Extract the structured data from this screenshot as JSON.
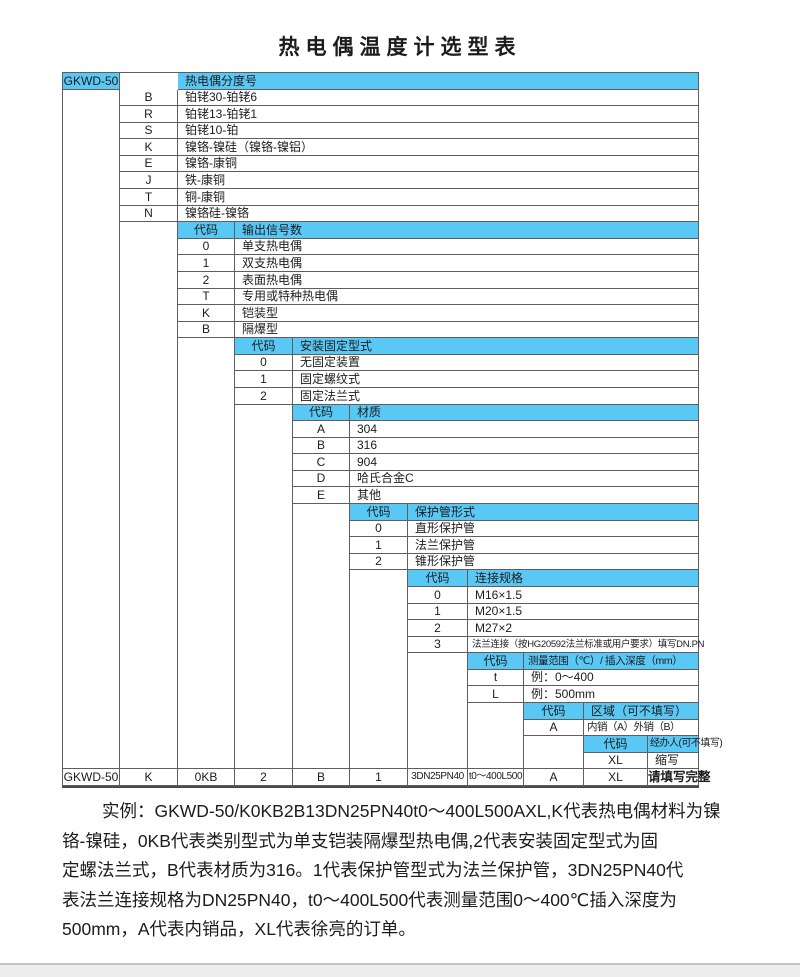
{
  "page": {
    "title": "热电偶温度计选型表"
  },
  "colors": {
    "header_blue": "#5ac8f5",
    "border": "#5e5e5e",
    "text": "#1c1c1c"
  },
  "table": {
    "sections": [
      {
        "code_header": "GKWD-50",
        "label_header": "热电偶分度号",
        "rows": [
          {
            "code": "B",
            "label": "铂铑30-铂铑6"
          },
          {
            "code": "R",
            "label": "铂铑13-铂铑1"
          },
          {
            "code": "S",
            "label": "铂铑10-铂"
          },
          {
            "code": "K",
            "label": "镍铬-镍硅（镍铬-镍铝）"
          },
          {
            "code": "E",
            "label": "镍铬-康铜"
          },
          {
            "code": "J",
            "label": "铁-康铜"
          },
          {
            "code": "T",
            "label": "铜-康铜"
          },
          {
            "code": "N",
            "label": "镍铬硅-镍铬"
          }
        ]
      },
      {
        "code_header": "代码",
        "label_header": "输出信号数",
        "rows": [
          {
            "code": "0",
            "label": "单支热电偶"
          },
          {
            "code": "1",
            "label": "双支热电偶"
          },
          {
            "code": "2",
            "label": "表面热电偶"
          },
          {
            "code": "T",
            "label": "专用或特种热电偶"
          },
          {
            "code": "K",
            "label": "铠装型"
          },
          {
            "code": "B",
            "label": "隔爆型"
          }
        ]
      },
      {
        "code_header": "代码",
        "label_header": "安装固定型式",
        "rows": [
          {
            "code": "0",
            "label": "无固定装置"
          },
          {
            "code": "1",
            "label": "固定螺纹式"
          },
          {
            "code": "2",
            "label": "固定法兰式"
          }
        ]
      },
      {
        "code_header": "代码",
        "label_header": "材质",
        "rows": [
          {
            "code": "A",
            "label": "304"
          },
          {
            "code": "B",
            "label": "316"
          },
          {
            "code": "C",
            "label": "904"
          },
          {
            "code": "D",
            "label": "哈氏合金C"
          },
          {
            "code": "E",
            "label": "其他"
          }
        ]
      },
      {
        "code_header": "代码",
        "label_header": "保护管形式",
        "rows": [
          {
            "code": "0",
            "label": "直形保护管"
          },
          {
            "code": "1",
            "label": "法兰保护管"
          },
          {
            "code": "2",
            "label": "锥形保护管"
          }
        ]
      },
      {
        "code_header": "代码",
        "label_header": "连接规格",
        "rows": [
          {
            "code": "0",
            "label": "M16×1.5"
          },
          {
            "code": "1",
            "label": "M20×1.5"
          },
          {
            "code": "2",
            "label": "M27×2"
          },
          {
            "code": "3",
            "label": "法兰连接（按HG20592法兰标准或用户要求）填写DN.PN"
          }
        ]
      },
      {
        "code_header": "代码",
        "label_header": "测量范围（℃）/ 插入深度（mm）",
        "rows": [
          {
            "code": "t",
            "label": "例：0～400"
          },
          {
            "code": "L",
            "label": "例：500mm"
          }
        ]
      },
      {
        "code_header": "代码",
        "label_header": "区域（可不填写）",
        "rows": [
          {
            "code": "A",
            "label": "内销（A）外销（B）"
          }
        ]
      },
      {
        "code_header": "代码",
        "label_header": "经办人(可不填写)",
        "rows": [
          {
            "code": "XL",
            "label": "缩写"
          }
        ]
      }
    ],
    "example_row": [
      "GKWD-50",
      "K",
      "0KB",
      "2",
      "B",
      "1",
      "3DN25PN40",
      "t0～400L500",
      "A",
      "XL",
      "请填写完整"
    ]
  },
  "example_note": {
    "lines": [
      "实例：GKWD-50/K0KB2B13DN25PN40t0～400L500AXL,K代表热电偶材料为镍",
      "铬-镍硅，0KB代表类别型式为单支铠装隔爆型热电偶,2代表安装固定型式为固",
      "定螺法兰式，B代表材质为316。1代表保护管型式为法兰保护管，3DN25PN40代",
      "表法兰连接规格为DN25PN40，t0～400L500代表测量范围0～400℃插入深度为",
      "500mm，A代表内销品，XL代表徐亮的订单。"
    ]
  }
}
